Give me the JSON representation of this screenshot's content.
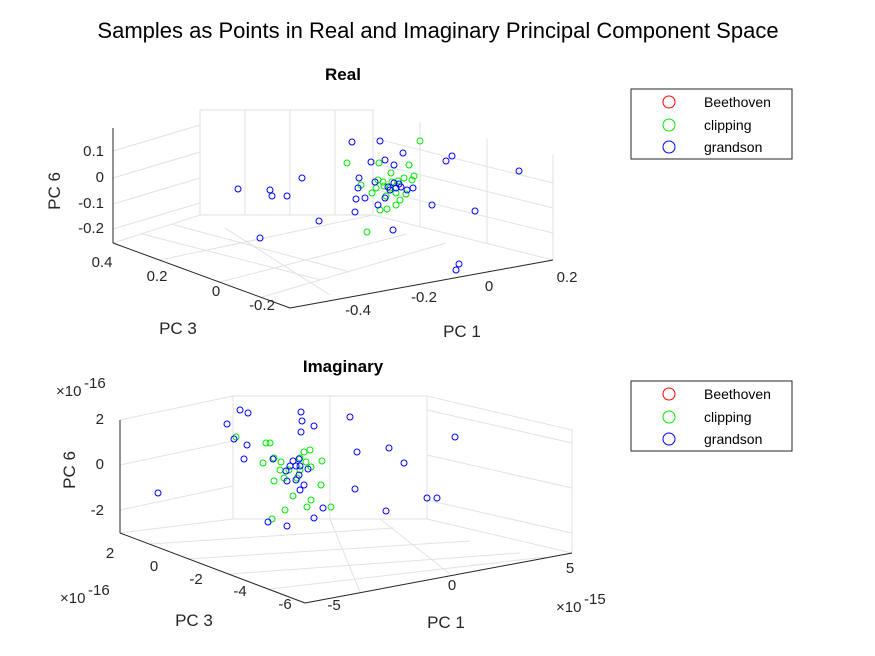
{
  "figure": {
    "title": "Samples as Points in Real and Imaginary Principal Component Space"
  },
  "chart_data": [
    {
      "type": "scatter",
      "title": "Real",
      "xlabel": "PC 1",
      "ylabel": "PC 3",
      "zlabel": "PC 6",
      "x_ticks": [
        "-0.4",
        "-0.2",
        "0",
        "0.2"
      ],
      "y_ticks": [
        "0.4",
        "0.2",
        "0",
        "-0.2"
      ],
      "z_ticks": [
        "0.1",
        "0",
        "-0.1",
        "-0.2"
      ],
      "legend": [
        "Beethoven",
        "clipping",
        "grandson"
      ],
      "legend_position": "right",
      "grid": true,
      "series": [
        {
          "name": "Beethoven",
          "color": "#ff0000",
          "points": []
        },
        {
          "name": "clipping",
          "color": "#00e600",
          "points": [
            [
              347,
              163
            ],
            [
              379,
              163
            ],
            [
              420,
              141
            ],
            [
              409,
              165
            ],
            [
              391,
              173
            ],
            [
              378,
              180
            ],
            [
              384,
              186
            ],
            [
              398,
              181
            ],
            [
              412,
              180
            ],
            [
              406,
              194
            ],
            [
              396,
              193
            ],
            [
              386,
              196
            ],
            [
              376,
              188
            ],
            [
              380,
              210
            ],
            [
              387,
              209
            ],
            [
              396,
              205
            ],
            [
              367,
              232
            ],
            [
              361,
              185
            ],
            [
              404,
              178
            ],
            [
              392,
              182
            ],
            [
              383,
              182
            ],
            [
              400,
              200
            ],
            [
              414,
              176
            ],
            [
              372,
              193
            ],
            [
              390,
              188
            ]
          ]
        },
        {
          "name": "grandson",
          "color": "#0000ff",
          "points": [
            [
              352,
              142
            ],
            [
              380,
              141
            ],
            [
              371,
              162
            ],
            [
              385,
              160
            ],
            [
              394,
              165
            ],
            [
              403,
              153
            ],
            [
              446,
              161
            ],
            [
              452,
              156
            ],
            [
              519,
              171
            ],
            [
              238,
              189
            ],
            [
              270,
              190
            ],
            [
              272,
              196
            ],
            [
              287,
              196
            ],
            [
              302,
              178
            ],
            [
              359,
              178
            ],
            [
              358,
              188
            ],
            [
              375,
              182
            ],
            [
              394,
              183
            ],
            [
              401,
              187
            ],
            [
              407,
              190
            ],
            [
              413,
              188
            ],
            [
              356,
              199
            ],
            [
              365,
              198
            ],
            [
              385,
              198
            ],
            [
              355,
              212
            ],
            [
              378,
              205
            ],
            [
              393,
              230
            ],
            [
              432,
              205
            ],
            [
              475,
              211
            ],
            [
              319,
              221
            ],
            [
              260,
              238
            ],
            [
              456,
              270
            ],
            [
              459,
              264
            ],
            [
              390,
              190
            ],
            [
              396,
              188
            ],
            [
              399,
              184
            ],
            [
              388,
              187
            ]
          ]
        }
      ]
    },
    {
      "type": "scatter",
      "title": "Imaginary",
      "xlabel": "PC 1",
      "ylabel": "PC 3",
      "zlabel": "PC 6",
      "x_ticks": [
        "-5",
        "0",
        "5"
      ],
      "y_ticks": [
        "2",
        "0",
        "-2",
        "-4",
        "-6"
      ],
      "z_ticks": [
        "2",
        "0",
        "-2"
      ],
      "x_exponent": "-15",
      "y_exponent": "-16",
      "z_exponent": "-16",
      "legend": [
        "Beethoven",
        "clipping",
        "grandson"
      ],
      "legend_position": "right",
      "grid": true,
      "series": [
        {
          "name": "Beethoven",
          "color": "#ff0000",
          "points": []
        },
        {
          "name": "clipping",
          "color": "#00e600",
          "points": [
            [
              270,
              443
            ],
            [
              266,
              443
            ],
            [
              274,
              458
            ],
            [
              263,
              463
            ],
            [
              281,
              462
            ],
            [
              304,
              452
            ],
            [
              310,
              450
            ],
            [
              322,
              461
            ],
            [
              311,
              467
            ],
            [
              297,
              478
            ],
            [
              284,
              478
            ],
            [
              274,
              481
            ],
            [
              293,
              496
            ],
            [
              321,
              485
            ],
            [
              311,
              500
            ],
            [
              307,
              507
            ],
            [
              285,
              510
            ],
            [
              272,
              519
            ],
            [
              331,
              507
            ],
            [
              300,
              458
            ],
            [
              289,
              470
            ],
            [
              300,
              470
            ],
            [
              306,
              462
            ],
            [
              280,
              470
            ],
            [
              236,
              437
            ]
          ]
        },
        {
          "name": "grandson",
          "color": "#0000ff",
          "points": [
            [
              240,
              410
            ],
            [
              248,
              413
            ],
            [
              227,
              424
            ],
            [
              234,
              439
            ],
            [
              247,
              445
            ],
            [
              301,
              412
            ],
            [
              302,
              421
            ],
            [
              314,
              426
            ],
            [
              301,
              432
            ],
            [
              350,
              417
            ],
            [
              357,
              452
            ],
            [
              389,
              448
            ],
            [
              404,
              463
            ],
            [
              455,
              437
            ],
            [
              299,
              459
            ],
            [
              293,
              461
            ],
            [
              296,
              466
            ],
            [
              300,
              466
            ],
            [
              290,
              466
            ],
            [
              286,
              471
            ],
            [
              299,
              475
            ],
            [
              287,
              481
            ],
            [
              296,
              480
            ],
            [
              244,
              459
            ],
            [
              273,
              459
            ],
            [
              308,
              469
            ],
            [
              304,
              485
            ],
            [
              355,
              489
            ],
            [
              386,
              511
            ],
            [
              427,
              498
            ],
            [
              437,
              498
            ],
            [
              314,
              518
            ],
            [
              323,
              508
            ],
            [
              287,
              526
            ],
            [
              268,
              522
            ],
            [
              158,
              493
            ],
            [
              300,
              490
            ]
          ]
        }
      ]
    }
  ]
}
